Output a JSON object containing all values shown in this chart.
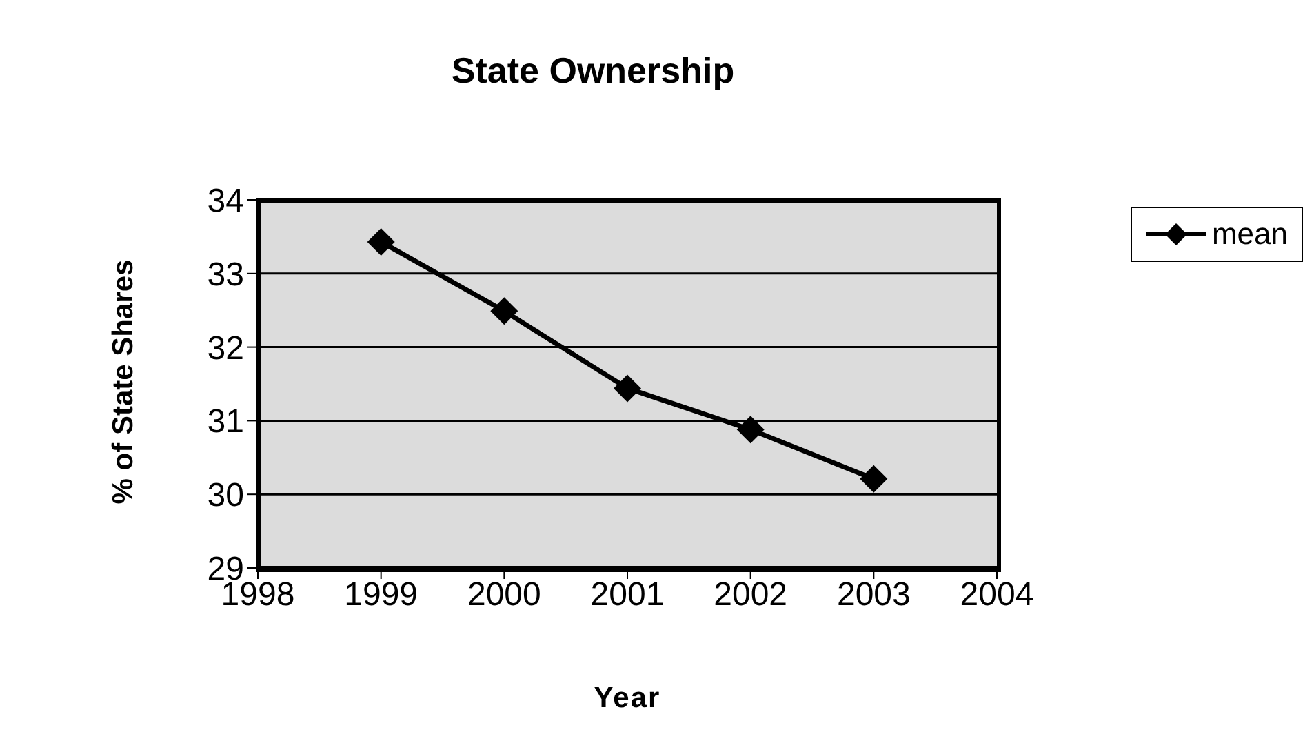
{
  "chart_data": {
    "type": "line",
    "title": "State Ownership",
    "xlabel": "Year",
    "ylabel": "% of State Shares",
    "x": [
      1999,
      2000,
      2001,
      2002,
      2003
    ],
    "series": [
      {
        "name": "mean",
        "color": "#000000",
        "values": [
          33.43,
          32.49,
          31.44,
          30.88,
          30.21
        ]
      }
    ],
    "xlim": [
      1998,
      2004
    ],
    "xticks": [
      1998,
      1999,
      2000,
      2001,
      2002,
      2003,
      2004
    ],
    "ylim": [
      29,
      34
    ],
    "yticks": [
      29,
      30,
      31,
      32,
      33,
      34
    ],
    "grid": "y",
    "legend": "top right",
    "marker": "diamond",
    "line_style": "solid"
  }
}
